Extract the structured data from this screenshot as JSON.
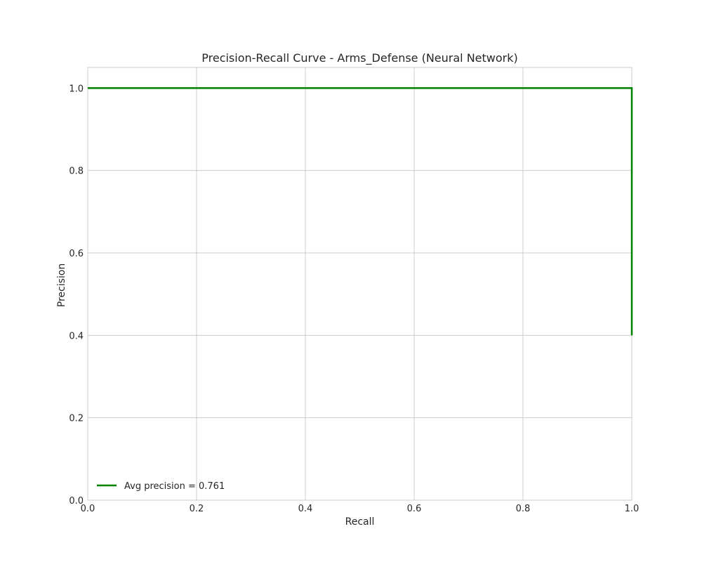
{
  "chart_data": {
    "type": "line",
    "title": "Precision-Recall Curve - Arms_Defense (Neural Network)",
    "xlabel": "Recall",
    "ylabel": "Precision",
    "xlim": [
      0.0,
      1.0
    ],
    "ylim": [
      0.0,
      1.05
    ],
    "xticks": [
      "0.0",
      "0.2",
      "0.4",
      "0.6",
      "0.8",
      "1.0"
    ],
    "yticks": [
      "0.0",
      "0.2",
      "0.4",
      "0.6",
      "0.8",
      "1.0"
    ],
    "grid": true,
    "legend_position": "lower-left",
    "series": [
      {
        "name": "Avg precision = 0.761",
        "color": "#008000",
        "x": [
          0.0,
          1.0,
          1.0
        ],
        "y": [
          1.0,
          1.0,
          0.4
        ]
      }
    ]
  }
}
